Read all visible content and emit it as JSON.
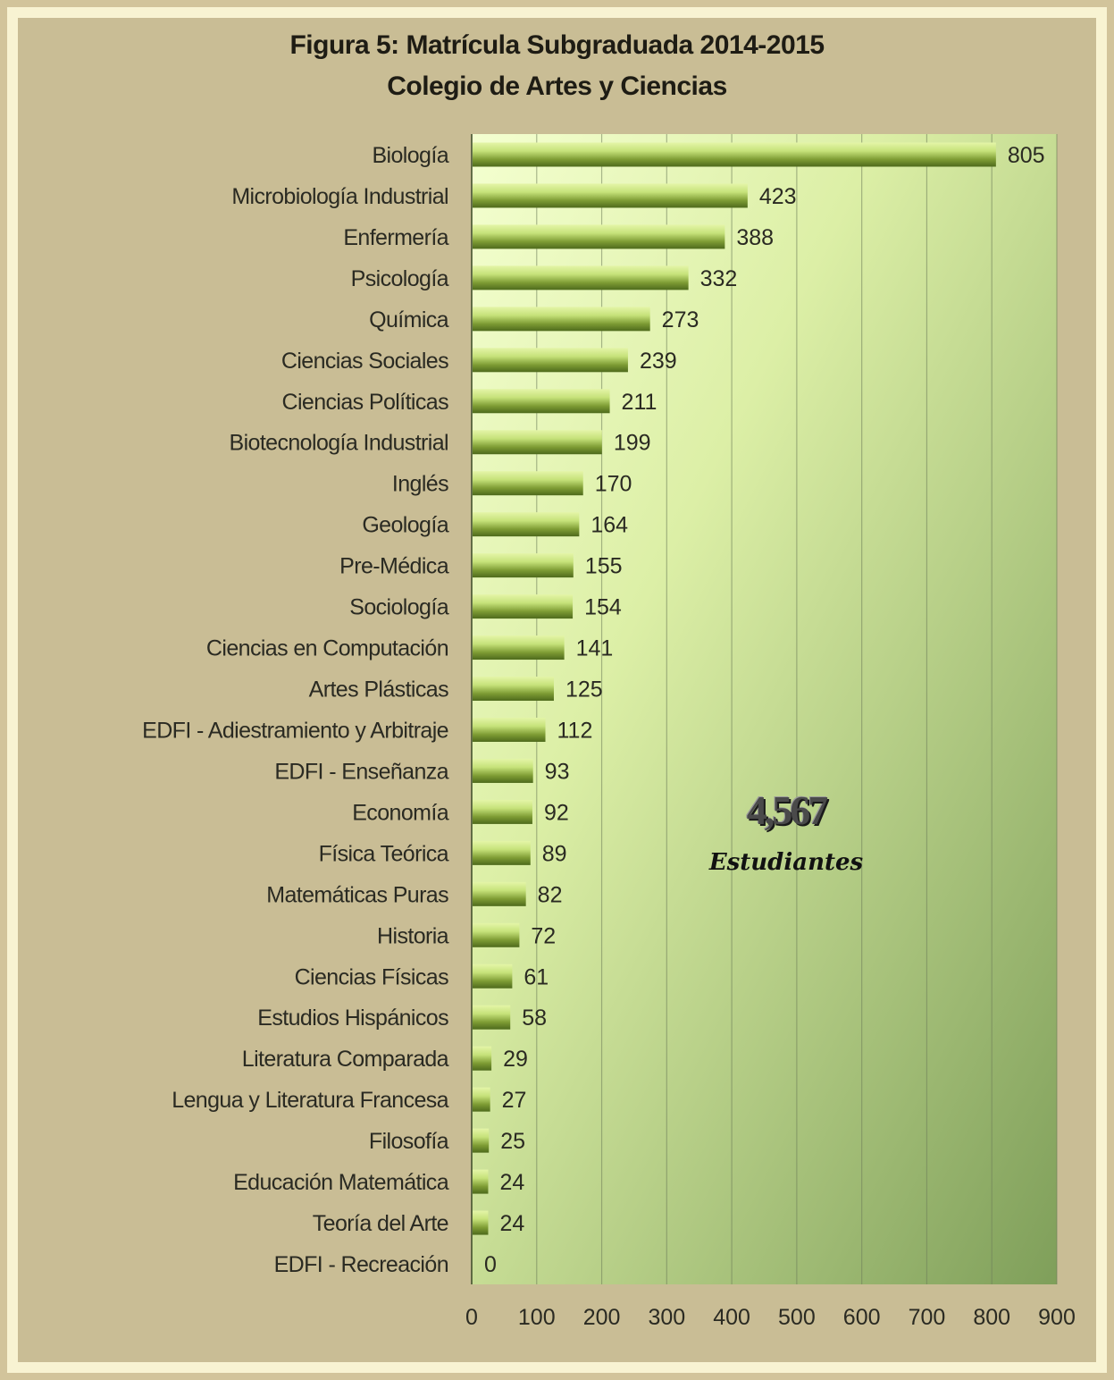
{
  "chart_data": {
    "type": "bar",
    "orientation": "horizontal",
    "title": "Figura 5: Matrícula Subgraduada 2014-2015",
    "subtitle": "Colegio de Artes y Ciencias",
    "categories": [
      "Biología",
      "Microbiología Industrial",
      "Enfermería",
      "Psicología",
      "Química",
      "Ciencias Sociales",
      "Ciencias Políticas",
      "Biotecnología Industrial",
      "Inglés",
      "Geología",
      "Pre-Médica",
      "Sociología",
      "Ciencias en Computación",
      "Artes Plásticas",
      "EDFI - Adiestramiento y Arbitraje",
      "EDFI - Enseñanza",
      "Economía",
      "Física Teórica",
      "Matemáticas Puras",
      "Historia",
      "Ciencias Físicas",
      "Estudios Hispánicos",
      "Literatura Comparada",
      "Lengua y Literatura Francesa",
      "Filosofía",
      "Educación Matemática",
      "Teoría del Arte",
      "EDFI - Recreación"
    ],
    "values": [
      805,
      423,
      388,
      332,
      273,
      239,
      211,
      199,
      170,
      164,
      155,
      154,
      141,
      125,
      112,
      93,
      92,
      89,
      82,
      72,
      61,
      58,
      29,
      27,
      25,
      24,
      24,
      0
    ],
    "xlim": [
      0,
      900
    ],
    "xticks": [
      "0",
      "100",
      "200",
      "300",
      "400",
      "500",
      "600",
      "700",
      "800",
      "900"
    ],
    "grid": true,
    "data_labels": true,
    "colors": {
      "bar_light": "#c6e27a",
      "bar_dark": "#4e6a1c",
      "plot_light": "#f4ffd0",
      "plot_dark": "#7f9f5a",
      "gridline": "#6f7f5a",
      "text": "#2a2a22"
    }
  },
  "annotation": {
    "total": "4,567",
    "label": "Estudiantes"
  }
}
